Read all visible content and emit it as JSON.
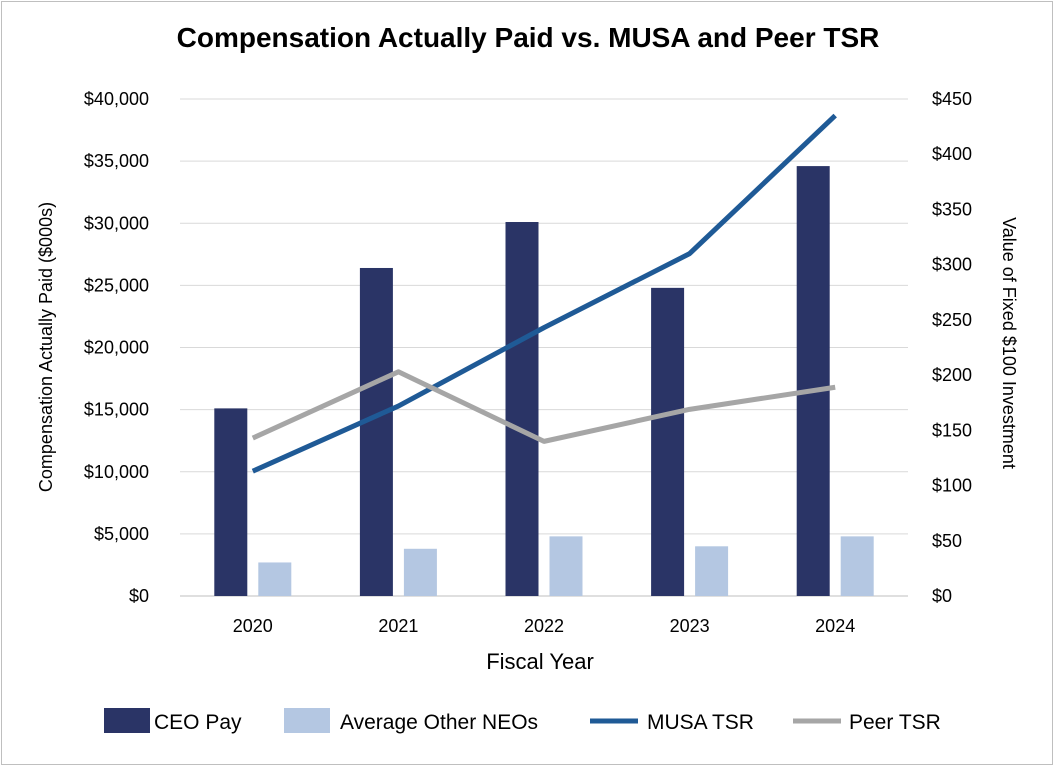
{
  "chart_data": {
    "type": "bar",
    "title": "Compensation Actually Paid vs. MUSA and Peer TSR",
    "xlabel": "Fiscal Year",
    "ylabel_left": "Compensation Actually Paid ($000s)",
    "ylabel_right": "Value of Fixed $100 Investment",
    "categories": [
      "2020",
      "2021",
      "2022",
      "2023",
      "2024"
    ],
    "ylim_left": [
      0,
      40000
    ],
    "ylim_right": [
      0,
      450
    ],
    "yticks_left": [
      "$0",
      "$5,000",
      "$10,000",
      "$15,000",
      "$20,000",
      "$25,000",
      "$30,000",
      "$35,000",
      "$40,000"
    ],
    "yticks_right": [
      "$0",
      "$50",
      "$100",
      "$150",
      "$200",
      "$250",
      "$300",
      "$350",
      "$400",
      "$450"
    ],
    "grid": true,
    "legend_position": "bottom",
    "series": [
      {
        "name": "CEO Pay",
        "kind": "bar",
        "axis": "left",
        "color": "#2a3466",
        "values": [
          15100,
          26400,
          30100,
          24800,
          34600
        ]
      },
      {
        "name": "Average Other NEOs",
        "kind": "bar",
        "axis": "left",
        "color": "#b4c7e2",
        "values": [
          2700,
          3800,
          4800,
          4000,
          4800
        ]
      },
      {
        "name": "MUSA TSR",
        "kind": "line",
        "axis": "right",
        "color": "#1f5a96",
        "values": [
          113,
          172,
          243,
          310,
          435
        ]
      },
      {
        "name": "Peer TSR",
        "kind": "line",
        "axis": "right",
        "color": "#a6a6a6",
        "values": [
          143,
          203,
          140,
          169,
          189
        ]
      }
    ]
  }
}
